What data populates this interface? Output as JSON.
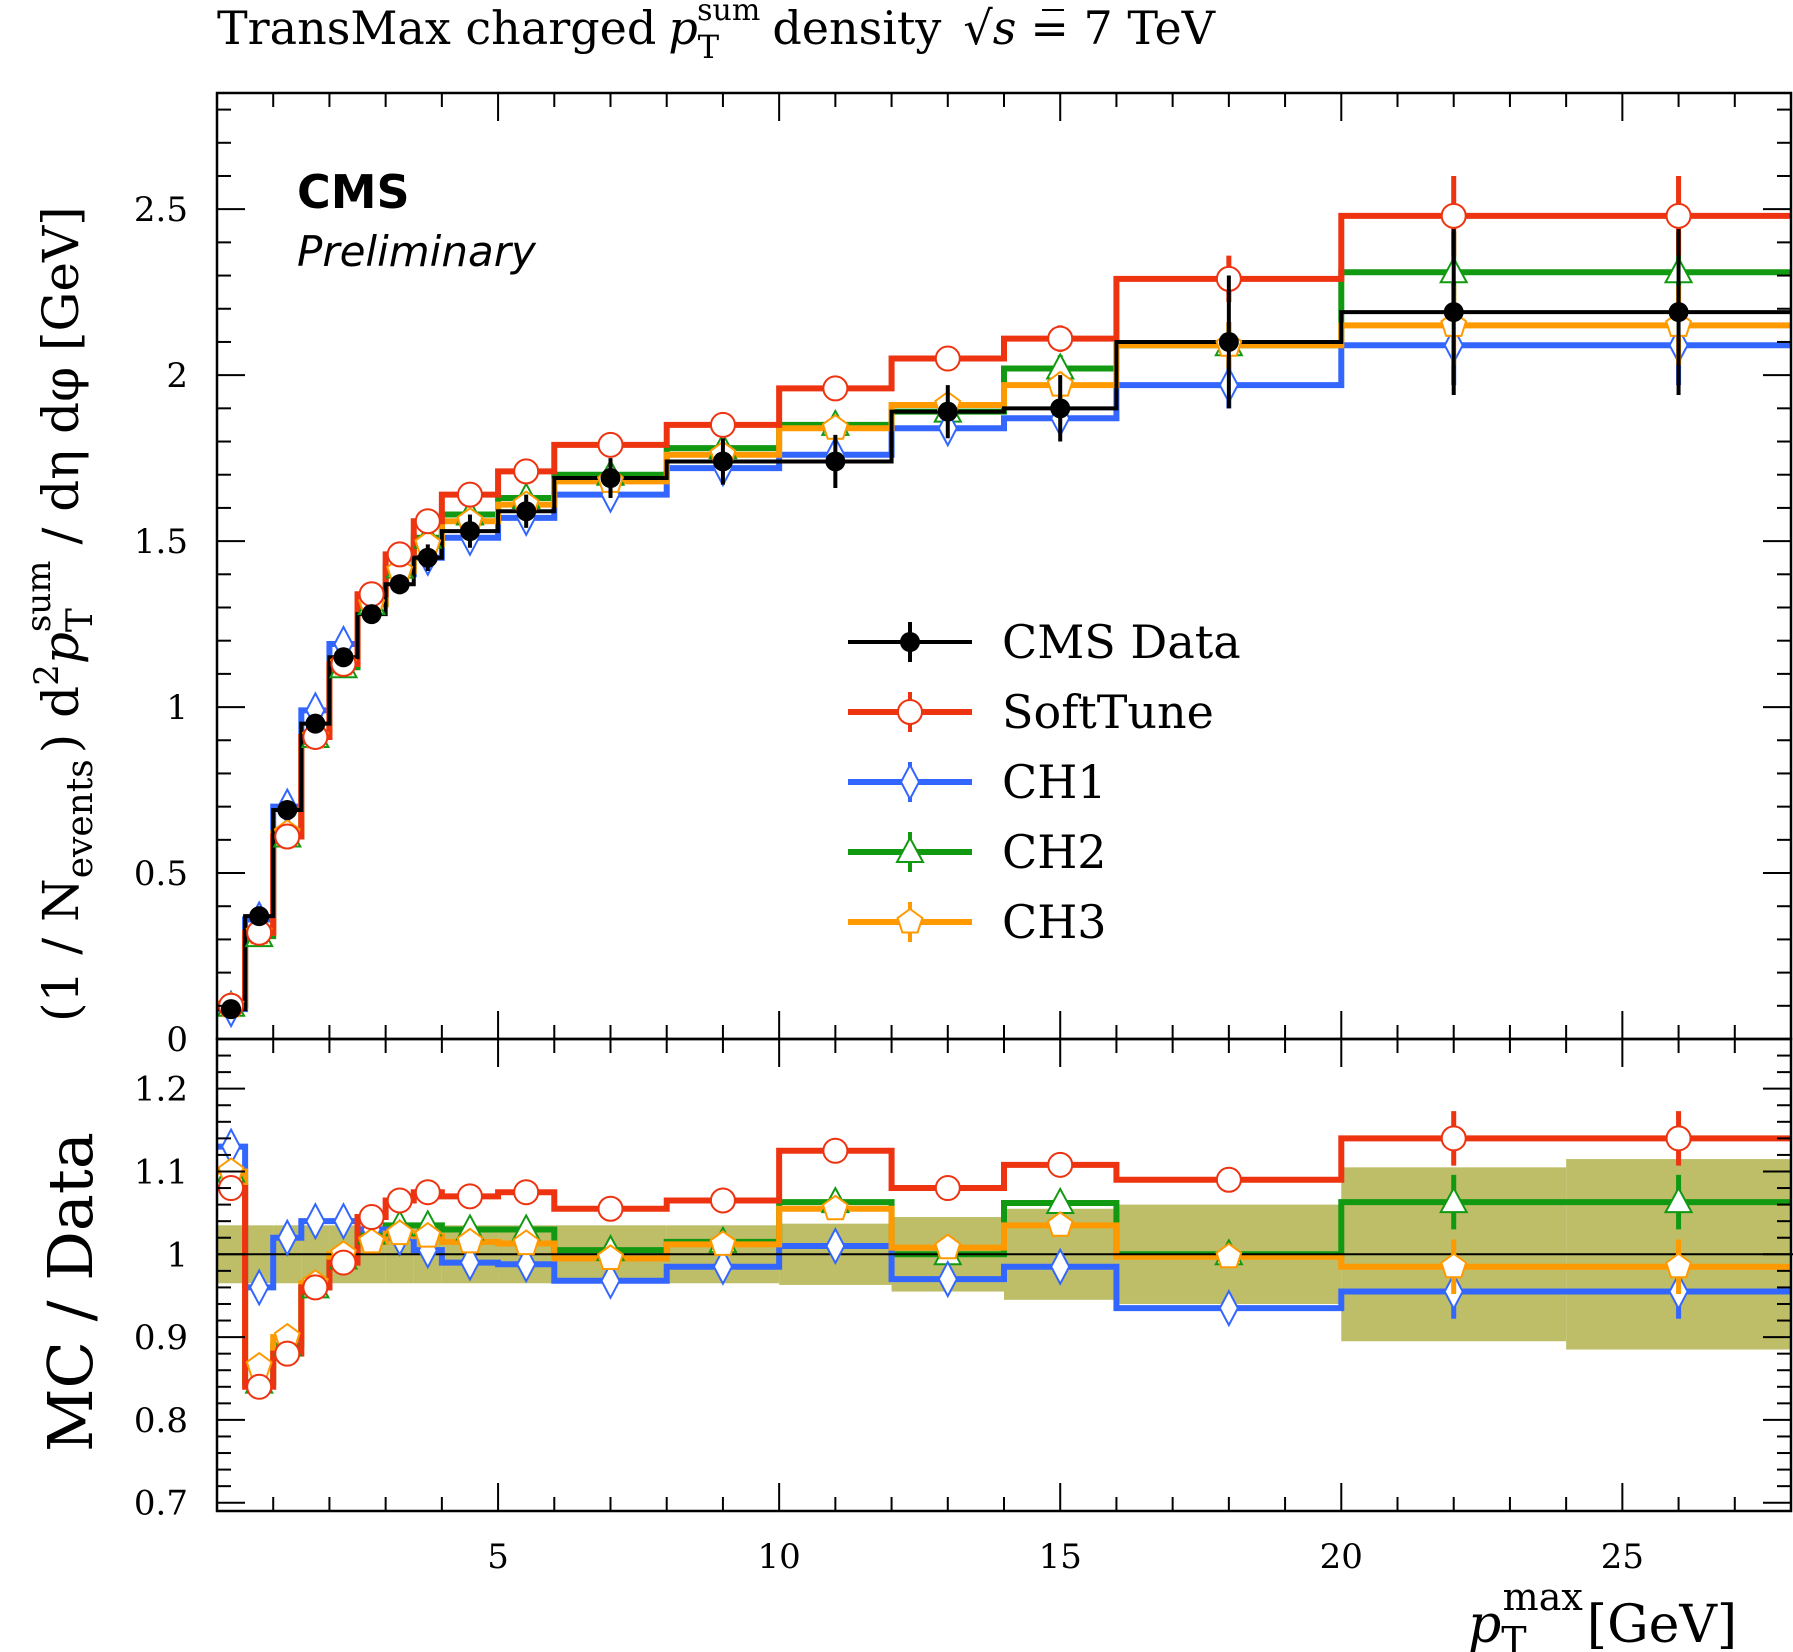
{
  "chart_data": {
    "type": "line",
    "title_parts": {
      "prefix": "TransMax charged",
      "p": "p",
      "sub": "T",
      "sup": "sum",
      "middle": "density",
      "sqrt_symbol": "√",
      "s": "s",
      "suffix": "= 7 TeV"
    },
    "label_cms": "CMS",
    "label_preliminary": "Preliminary",
    "ylabel_main_parts": {
      "open": "(1 / N",
      "sub_events": "events",
      "close": ") d",
      "sup2": "2",
      "p": "p",
      "sub": "T",
      "sup": "sum",
      "rest": "/ dη dφ [GeV]"
    },
    "ylabel_ratio": "MC / Data",
    "xlabel_parts": {
      "p": "p",
      "sub": "T",
      "sup": "max",
      "unit": "[GeV]"
    },
    "xlim": [
      0,
      28
    ],
    "ylim_main": [
      0,
      2.85
    ],
    "ylim_ratio": [
      0.69,
      1.26
    ],
    "xticks": [
      "5",
      "10",
      "15",
      "20",
      "25"
    ],
    "yticks_main": [
      "0",
      "0.5",
      "1",
      "1.5",
      "2",
      "2.5"
    ],
    "yticks_ratio": [
      "0.7",
      "0.8",
      "0.9",
      "1",
      "1.1",
      "1.2"
    ],
    "grid": false,
    "legend_position": "center-right",
    "bin_edges": [
      0,
      0.5,
      1,
      1.5,
      2,
      2.5,
      3,
      3.5,
      4,
      5,
      6,
      8,
      10,
      12,
      14,
      16,
      20,
      24,
      28
    ],
    "bin_centers": [
      0.25,
      0.75,
      1.25,
      1.75,
      2.25,
      2.75,
      3.25,
      3.75,
      4.5,
      5.5,
      7,
      9,
      11,
      13,
      15,
      18,
      22,
      26
    ],
    "data": {
      "name": "CMS Data",
      "color": "#000000",
      "values": [
        0.09,
        0.37,
        0.69,
        0.95,
        1.15,
        1.28,
        1.37,
        1.45,
        1.53,
        1.59,
        1.69,
        1.74,
        1.74,
        1.89,
        1.9,
        2.1,
        2.19,
        2.19
      ],
      "errors": [
        0.01,
        0.015,
        0.015,
        0.02,
        0.02,
        0.025,
        0.03,
        0.04,
        0.05,
        0.05,
        0.06,
        0.07,
        0.08,
        0.08,
        0.1,
        0.2,
        0.25,
        0.25
      ],
      "band": [
        0.035,
        0.035,
        0.035,
        0.035,
        0.035,
        0.035,
        0.035,
        0.035,
        0.035,
        0.035,
        0.035,
        0.035,
        0.037,
        0.045,
        0.055,
        0.06,
        0.105,
        0.115
      ]
    },
    "series": [
      {
        "name": "SoftTune",
        "color": "#ee3311",
        "marker": "circle",
        "values": [
          0.1,
          0.32,
          0.61,
          0.91,
          1.13,
          1.34,
          1.46,
          1.56,
          1.64,
          1.71,
          1.79,
          1.85,
          1.96,
          2.05,
          2.11,
          2.29,
          2.48,
          2.48
        ],
        "ratio": [
          1.08,
          0.84,
          0.88,
          0.96,
          0.99,
          1.045,
          1.065,
          1.075,
          1.07,
          1.075,
          1.055,
          1.065,
          1.125,
          1.08,
          1.108,
          1.09,
          1.14,
          1.14
        ],
        "errors": [
          0.01,
          0.015,
          0.015,
          0.02,
          0.02,
          0.025,
          0.03,
          0.03,
          0.03,
          0.03,
          0.03,
          0.03,
          0.03,
          0.03,
          0.04,
          0.07,
          0.12,
          0.12
        ]
      },
      {
        "name": "CH1",
        "color": "#3366ff",
        "marker": "diamond",
        "values": [
          0.09,
          0.36,
          0.7,
          0.99,
          1.19,
          1.31,
          1.4,
          1.45,
          1.51,
          1.57,
          1.64,
          1.72,
          1.76,
          1.84,
          1.87,
          1.97,
          2.09,
          2.09
        ],
        "ratio": [
          1.13,
          0.96,
          1.02,
          1.04,
          1.04,
          1.03,
          1.02,
          1.005,
          0.99,
          0.988,
          0.968,
          0.985,
          1.01,
          0.97,
          0.985,
          0.935,
          0.955,
          0.955
        ],
        "errors": [
          0.01,
          0.015,
          0.015,
          0.02,
          0.02,
          0.025,
          0.03,
          0.03,
          0.03,
          0.03,
          0.03,
          0.03,
          0.03,
          0.03,
          0.04,
          0.07,
          0.12,
          0.12
        ]
      },
      {
        "name": "CH2",
        "color": "#119911",
        "marker": "triangle",
        "values": [
          0.1,
          0.31,
          0.61,
          0.91,
          1.12,
          1.31,
          1.42,
          1.51,
          1.58,
          1.63,
          1.7,
          1.78,
          1.85,
          1.89,
          2.02,
          2.09,
          2.31,
          2.31
        ],
        "ratio": [
          1.1,
          0.845,
          0.89,
          0.96,
          0.995,
          1.025,
          1.035,
          1.035,
          1.03,
          1.03,
          1.005,
          1.015,
          1.063,
          1.0,
          1.062,
          1.0,
          1.063,
          1.063
        ],
        "errors": [
          0.01,
          0.015,
          0.015,
          0.02,
          0.02,
          0.025,
          0.03,
          0.03,
          0.03,
          0.03,
          0.03,
          0.03,
          0.03,
          0.03,
          0.04,
          0.07,
          0.12,
          0.12
        ]
      },
      {
        "name": "CH3",
        "color": "#ff9900",
        "marker": "pentagon",
        "values": [
          0.1,
          0.32,
          0.62,
          0.91,
          1.13,
          1.31,
          1.41,
          1.49,
          1.56,
          1.61,
          1.68,
          1.76,
          1.84,
          1.91,
          1.97,
          2.09,
          2.15,
          2.15
        ],
        "ratio": [
          1.1,
          0.865,
          0.9,
          0.965,
          1.0,
          1.015,
          1.025,
          1.022,
          1.015,
          1.013,
          0.995,
          1.012,
          1.055,
          1.008,
          1.035,
          0.997,
          0.985,
          0.985
        ],
        "errors": [
          0.01,
          0.015,
          0.015,
          0.02,
          0.02,
          0.025,
          0.03,
          0.03,
          0.03,
          0.03,
          0.03,
          0.03,
          0.03,
          0.03,
          0.04,
          0.07,
          0.12,
          0.12
        ]
      }
    ],
    "band_color": "#b3b34d"
  }
}
